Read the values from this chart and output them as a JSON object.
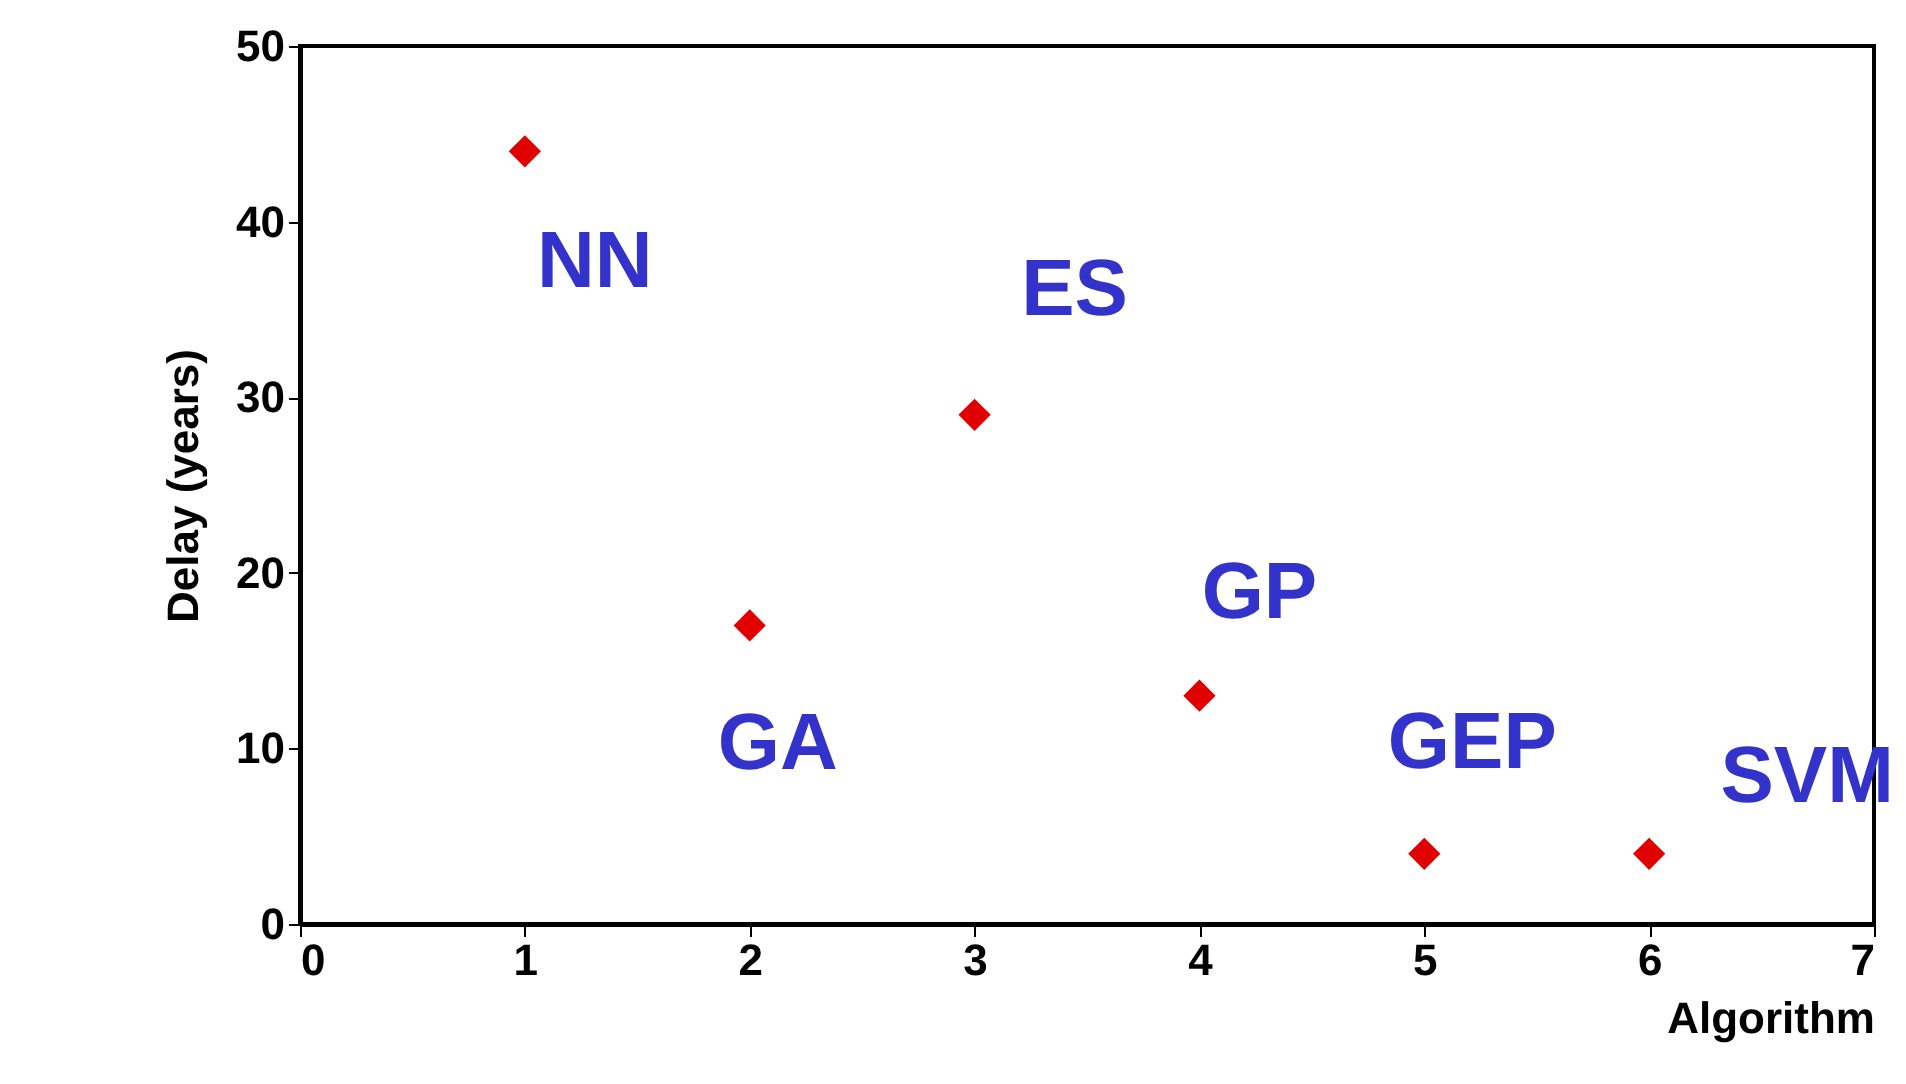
{
  "chart_data": {
    "type": "scatter",
    "xlabel": "Algorithm",
    "ylabel": "Delay (years)",
    "x": [
      1,
      2,
      3,
      4,
      5,
      6
    ],
    "series": [
      {
        "color": "#e00000",
        "values": [
          44,
          17,
          29,
          13,
          4,
          4
        ]
      }
    ],
    "xlim": [
      0,
      7
    ],
    "xticks": [
      0,
      1,
      2,
      3,
      4,
      5,
      6,
      7
    ],
    "ylim": [
      0,
      50
    ],
    "yticks": [
      0,
      10,
      20,
      30,
      40,
      50
    ],
    "grid": false,
    "marker": "diamond",
    "annotations": [
      {
        "text": "NN",
        "x": 1,
        "y": 44
      },
      {
        "text": "ES",
        "x": 3,
        "y": 29
      },
      {
        "text": "GA",
        "x": 2,
        "y": 17
      },
      {
        "text": "GP",
        "x": 4,
        "y": 13
      },
      {
        "text": "GEP",
        "x": 5,
        "y": 4
      },
      {
        "text": "SVM",
        "x": 6,
        "y": 4
      }
    ]
  }
}
